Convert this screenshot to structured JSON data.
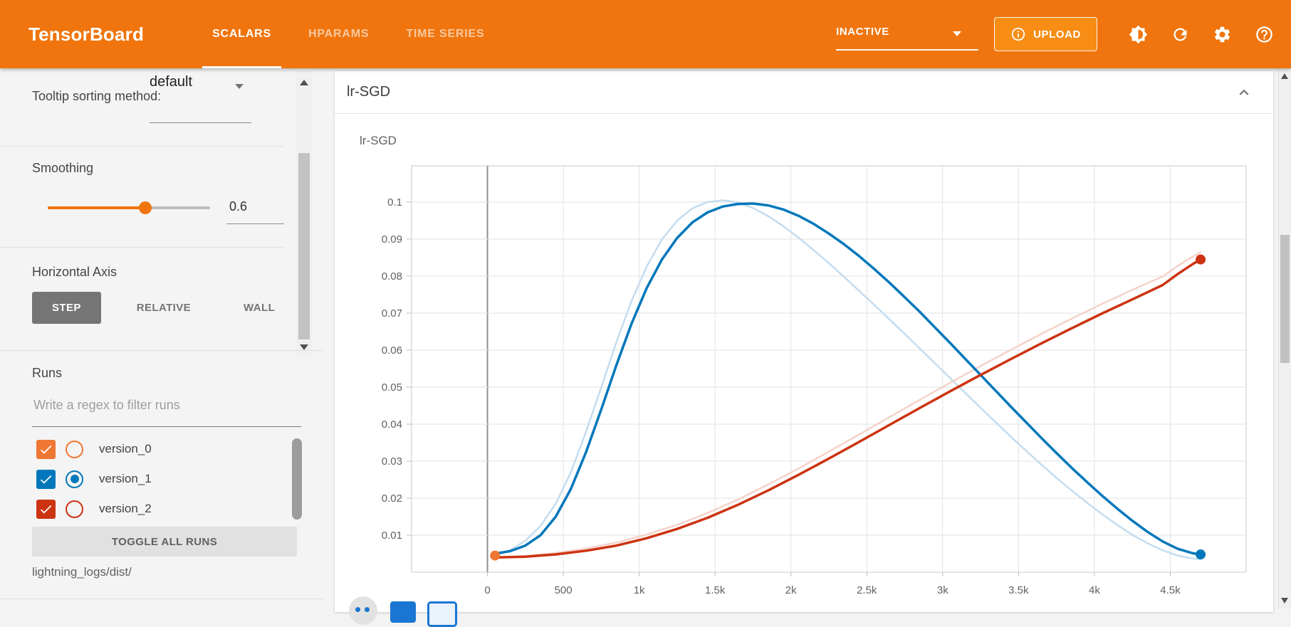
{
  "colors": {
    "header_bar": "#f0750e",
    "upload_button": "#f78d15",
    "accent_orange": "#f0750e",
    "run_version_0": "#ee7733",
    "run_version_1": "#0077bb",
    "run_version_2": "#cc3311"
  },
  "header": {
    "logo": "TensorBoard",
    "tabs": [
      {
        "label": "SCALARS",
        "active": true
      },
      {
        "label": "HPARAMS",
        "active": false
      },
      {
        "label": "TIME SERIES",
        "active": false
      }
    ],
    "status": "INACTIVE",
    "upload_label": "UPLOAD",
    "icons": [
      "info-icon",
      "brightness-icon",
      "refresh-icon",
      "settings-icon",
      "help-icon"
    ]
  },
  "sidebar": {
    "tooltip_sorting": {
      "label": "Tooltip sorting method:",
      "value": "default"
    },
    "smoothing": {
      "label": "Smoothing",
      "value": "0.6",
      "percent": 60
    },
    "horizontal_axis": {
      "label": "Horizontal Axis",
      "options": [
        "STEP",
        "RELATIVE",
        "WALL"
      ],
      "selected": "STEP"
    },
    "runs": {
      "label": "Runs",
      "filter_placeholder": "Write a regex to filter runs",
      "items": [
        {
          "name": "version_0",
          "checked": true,
          "radio_selected": false,
          "color": "#ee7733"
        },
        {
          "name": "version_1",
          "checked": true,
          "radio_selected": true,
          "color": "#0077bb"
        },
        {
          "name": "version_2",
          "checked": true,
          "radio_selected": false,
          "color": "#cc3311"
        }
      ],
      "toggle_all_label": "TOGGLE ALL RUNS",
      "logdir": "lightning_logs/dist/"
    }
  },
  "main": {
    "group_title": "lr-SGD"
  },
  "chart_data": {
    "type": "line",
    "title": "lr-SGD",
    "xlabel": "",
    "ylabel": "",
    "xlim": [
      -500,
      5000
    ],
    "ylim": [
      0,
      0.1098
    ],
    "grid": true,
    "x_tick_values": [
      0,
      500,
      1000,
      1500,
      2000,
      2500,
      3000,
      3500,
      4000,
      4500
    ],
    "x_ticks": [
      "0",
      "500",
      "1k",
      "1.5k",
      "2k",
      "2.5k",
      "3k",
      "3.5k",
      "4k",
      "4.5k"
    ],
    "y_tick_values": [
      0.01,
      0.02,
      0.03,
      0.04,
      0.05,
      0.06,
      0.07,
      0.08,
      0.09,
      0.1
    ],
    "y_ticks": [
      "0.01",
      "0.02",
      "0.03",
      "0.04",
      "0.05",
      "0.06",
      "0.07",
      "0.08",
      "0.09",
      "0.1"
    ],
    "series": [
      {
        "name": "version_1 (unsmoothed)",
        "color": "#c4dcef",
        "width": 2.5,
        "end_dot": false,
        "points": [
          [
            50,
            0.0045
          ],
          [
            150,
            0.006
          ],
          [
            250,
            0.0085
          ],
          [
            350,
            0.0125
          ],
          [
            450,
            0.0185
          ],
          [
            550,
            0.027
          ],
          [
            650,
            0.038
          ],
          [
            750,
            0.05
          ],
          [
            850,
            0.0622
          ],
          [
            950,
            0.0733
          ],
          [
            1050,
            0.0826
          ],
          [
            1150,
            0.0899
          ],
          [
            1250,
            0.095
          ],
          [
            1350,
            0.0983
          ],
          [
            1450,
            0.1
          ],
          [
            1550,
            0.1005
          ],
          [
            1650,
            0.0999
          ],
          [
            1750,
            0.0984
          ],
          [
            1850,
            0.0962
          ],
          [
            1950,
            0.0935
          ],
          [
            2050,
            0.0904
          ],
          [
            2150,
            0.087
          ],
          [
            2250,
            0.0835
          ],
          [
            2350,
            0.0798
          ],
          [
            2450,
            0.076
          ],
          [
            2550,
            0.0722
          ],
          [
            2650,
            0.0683
          ],
          [
            2750,
            0.0644
          ],
          [
            2850,
            0.0604
          ],
          [
            2950,
            0.0564
          ],
          [
            3050,
            0.0524
          ],
          [
            3150,
            0.0484
          ],
          [
            3250,
            0.0444
          ],
          [
            3350,
            0.0405
          ],
          [
            3450,
            0.0366
          ],
          [
            3550,
            0.0328
          ],
          [
            3650,
            0.0291
          ],
          [
            3750,
            0.0255
          ],
          [
            3850,
            0.0221
          ],
          [
            3950,
            0.0188
          ],
          [
            4050,
            0.0157
          ],
          [
            4150,
            0.0128
          ],
          [
            4250,
            0.0101
          ],
          [
            4350,
            0.0078
          ],
          [
            4450,
            0.0059
          ],
          [
            4550,
            0.0045
          ],
          [
            4650,
            0.0037
          ],
          [
            4700,
            0.0035
          ]
        ]
      },
      {
        "name": "version_2 (unsmoothed)",
        "color": "#f5d2c9",
        "width": 2.5,
        "end_dot": false,
        "points": [
          [
            50,
            0.004
          ],
          [
            250,
            0.0044
          ],
          [
            450,
            0.0052
          ],
          [
            650,
            0.0064
          ],
          [
            850,
            0.008
          ],
          [
            1050,
            0.0102
          ],
          [
            1250,
            0.0128
          ],
          [
            1450,
            0.016
          ],
          [
            1650,
            0.0196
          ],
          [
            1850,
            0.0237
          ],
          [
            2050,
            0.028
          ],
          [
            2250,
            0.0326
          ],
          [
            2450,
            0.0372
          ],
          [
            2650,
            0.0419
          ],
          [
            2850,
            0.0466
          ],
          [
            3050,
            0.0512
          ],
          [
            3250,
            0.0557
          ],
          [
            3450,
            0.0601
          ],
          [
            3650,
            0.0644
          ],
          [
            3850,
            0.0685
          ],
          [
            4050,
            0.0725
          ],
          [
            4250,
            0.0763
          ],
          [
            4450,
            0.0799
          ],
          [
            4550,
            0.0828
          ],
          [
            4650,
            0.0853
          ],
          [
            4700,
            0.0865
          ]
        ]
      },
      {
        "name": "version_1",
        "color": "#0077bb",
        "width": 3.5,
        "end_dot": true,
        "points": [
          [
            50,
            0.005
          ],
          [
            150,
            0.0057
          ],
          [
            250,
            0.0072
          ],
          [
            350,
            0.01
          ],
          [
            450,
            0.015
          ],
          [
            550,
            0.0225
          ],
          [
            650,
            0.0325
          ],
          [
            750,
            0.044
          ],
          [
            850,
            0.056
          ],
          [
            950,
            0.0672
          ],
          [
            1050,
            0.0768
          ],
          [
            1150,
            0.0845
          ],
          [
            1250,
            0.0903
          ],
          [
            1350,
            0.0945
          ],
          [
            1450,
            0.0972
          ],
          [
            1550,
            0.0988
          ],
          [
            1650,
            0.0995
          ],
          [
            1750,
            0.0996
          ],
          [
            1850,
            0.0991
          ],
          [
            1950,
            0.098
          ],
          [
            2050,
            0.0963
          ],
          [
            2150,
            0.0941
          ],
          [
            2250,
            0.0915
          ],
          [
            2350,
            0.0886
          ],
          [
            2450,
            0.0854
          ],
          [
            2550,
            0.0819
          ],
          [
            2650,
            0.0782
          ],
          [
            2750,
            0.0743
          ],
          [
            2850,
            0.0703
          ],
          [
            2950,
            0.0661
          ],
          [
            3050,
            0.0619
          ],
          [
            3150,
            0.0576
          ],
          [
            3250,
            0.0533
          ],
          [
            3350,
            0.049
          ],
          [
            3450,
            0.0447
          ],
          [
            3550,
            0.0405
          ],
          [
            3650,
            0.0363
          ],
          [
            3750,
            0.0322
          ],
          [
            3850,
            0.0282
          ],
          [
            3950,
            0.0244
          ],
          [
            4050,
            0.0207
          ],
          [
            4150,
            0.0172
          ],
          [
            4250,
            0.0139
          ],
          [
            4350,
            0.0109
          ],
          [
            4450,
            0.0083
          ],
          [
            4550,
            0.0063
          ],
          [
            4650,
            0.0051
          ],
          [
            4700,
            0.0048
          ]
        ]
      },
      {
        "name": "version_2",
        "color": "#cc3311",
        "width": 3.5,
        "end_dot": true,
        "points": [
          [
            50,
            0.004
          ],
          [
            250,
            0.0042
          ],
          [
            450,
            0.0048
          ],
          [
            650,
            0.0058
          ],
          [
            850,
            0.0072
          ],
          [
            1050,
            0.0092
          ],
          [
            1250,
            0.0117
          ],
          [
            1450,
            0.0147
          ],
          [
            1650,
            0.0182
          ],
          [
            1850,
            0.0221
          ],
          [
            2050,
            0.0263
          ],
          [
            2250,
            0.0307
          ],
          [
            2450,
            0.0352
          ],
          [
            2650,
            0.0398
          ],
          [
            2850,
            0.0444
          ],
          [
            3050,
            0.0489
          ],
          [
            3250,
            0.0533
          ],
          [
            3450,
            0.0576
          ],
          [
            3650,
            0.0618
          ],
          [
            3850,
            0.0659
          ],
          [
            4050,
            0.0699
          ],
          [
            4250,
            0.0737
          ],
          [
            4450,
            0.0776
          ],
          [
            4550,
            0.0806
          ],
          [
            4650,
            0.0833
          ],
          [
            4700,
            0.0845
          ]
        ]
      },
      {
        "name": "version_0",
        "color": "#ee7733",
        "width": 3,
        "end_dot": true,
        "points": [
          [
            50,
            0.0045
          ]
        ]
      }
    ]
  }
}
